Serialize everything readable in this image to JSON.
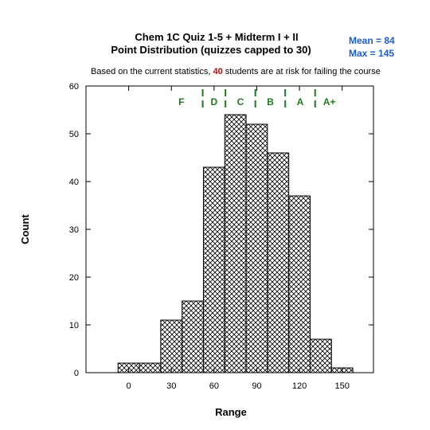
{
  "chart_data": {
    "type": "bar",
    "title_line1": "Chem 1C Quiz 1-5 + Midterm I + II",
    "title_line2": "Point Distribution  (quizzes capped to 30)",
    "subtitle_before": "Based on the current statistics, ",
    "subtitle_count": "40",
    "subtitle_after": " students are at risk for failing the course",
    "stats": {
      "mean": "Mean = 84",
      "max": "Max = 145"
    },
    "xlabel": "Range",
    "ylabel": "Count",
    "xlim": [
      -30,
      172
    ],
    "ylim": [
      0,
      60
    ],
    "x_ticks": [
      0,
      30,
      60,
      90,
      120,
      150
    ],
    "y_ticks": [
      0,
      10,
      20,
      30,
      40,
      50,
      60
    ],
    "bin_width": 15,
    "bins": [
      {
        "start": -7.5,
        "count": 2
      },
      {
        "start": 7.5,
        "count": 2
      },
      {
        "start": 22.5,
        "count": 11
      },
      {
        "start": 37.5,
        "count": 15
      },
      {
        "start": 52.5,
        "count": 43
      },
      {
        "start": 67.5,
        "count": 54
      },
      {
        "start": 82.5,
        "count": 52
      },
      {
        "start": 97.5,
        "count": 46
      },
      {
        "start": 112.5,
        "count": 37
      },
      {
        "start": 127.5,
        "count": 7
      },
      {
        "start": 142.5,
        "count": 1
      }
    ],
    "grade_boundaries": [
      52,
      68,
      89,
      110,
      131
    ],
    "grades": [
      {
        "label": "F",
        "x": 37
      },
      {
        "label": "D",
        "x": 60
      },
      {
        "label": "C",
        "x": 78.5
      },
      {
        "label": "B",
        "x": 99.5
      },
      {
        "label": "A",
        "x": 120.5
      },
      {
        "label": "A+",
        "x": 141
      }
    ],
    "grid": false,
    "colors": {
      "stats": "#1a5fd6",
      "risk": "#b01010",
      "grades": "#1e7a1e",
      "bars": "#000000"
    }
  }
}
